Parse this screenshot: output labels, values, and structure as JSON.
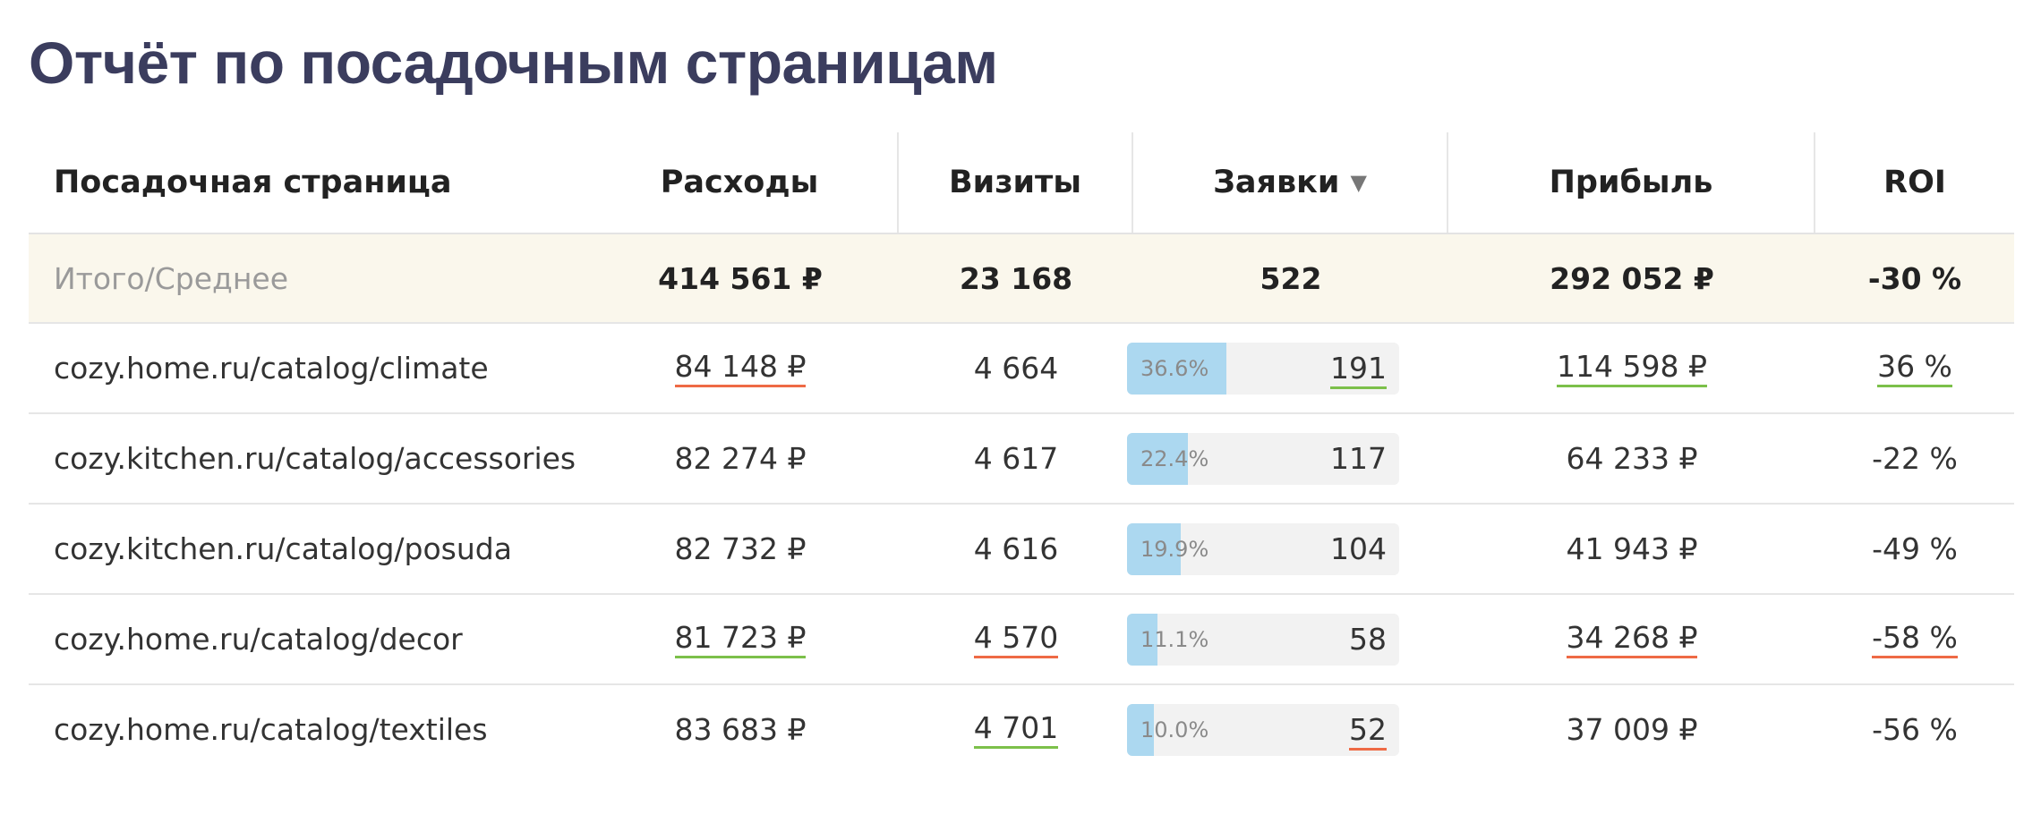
{
  "title": "Отчёт по посадочным страницам",
  "colors": {
    "title": "#3b3d5e",
    "total_row_bg": "#faf7ec",
    "bar_fill": "#acd8f0",
    "bar_track": "#f2f2f2",
    "underline_bad": "#ee6a45",
    "underline_good": "#7cc04a"
  },
  "table": {
    "columns": {
      "page": "Посадочная страница",
      "cost": "Расходы",
      "visits": "Визиты",
      "leads": "Заявки",
      "profit": "Прибыль",
      "roi": "ROI"
    },
    "sort": {
      "column": "leads",
      "direction": "desc",
      "icon": "sort-desc-icon",
      "glyph": "▼"
    },
    "total": {
      "label": "Итого/Среднее",
      "cost": "414 561 ₽",
      "visits": "23 168",
      "leads": "522",
      "profit": "292 052 ₽",
      "roi": "-30 %"
    },
    "rows": [
      {
        "page": "cozy.home.ru/catalog/climate",
        "cost": "84 148 ₽",
        "cost_mark": "red",
        "visits": "4 664",
        "visits_mark": "none",
        "leads": "191",
        "leads_mark": "green",
        "leads_share": 36.6,
        "leads_share_label": "36.6%",
        "profit": "114 598 ₽",
        "profit_mark": "green",
        "roi": "36 %",
        "roi_mark": "green"
      },
      {
        "page": "cozy.kitchen.ru/catalog/accessories",
        "cost": "82 274 ₽",
        "cost_mark": "none",
        "visits": "4 617",
        "visits_mark": "none",
        "leads": "117",
        "leads_mark": "none",
        "leads_share": 22.4,
        "leads_share_label": "22.4%",
        "profit": "64 233 ₽",
        "profit_mark": "none",
        "roi": "-22 %",
        "roi_mark": "none"
      },
      {
        "page": "cozy.kitchen.ru/catalog/posuda",
        "cost": "82 732 ₽",
        "cost_mark": "none",
        "visits": "4 616",
        "visits_mark": "none",
        "leads": "104",
        "leads_mark": "none",
        "leads_share": 19.9,
        "leads_share_label": "19.9%",
        "profit": "41 943 ₽",
        "profit_mark": "none",
        "roi": "-49 %",
        "roi_mark": "none"
      },
      {
        "page": "cozy.home.ru/catalog/decor",
        "cost": "81 723 ₽",
        "cost_mark": "green",
        "visits": "4 570",
        "visits_mark": "red",
        "leads": "58",
        "leads_mark": "none",
        "leads_share": 11.1,
        "leads_share_label": "11.1%",
        "profit": "34 268 ₽",
        "profit_mark": "red",
        "roi": "-58 %",
        "roi_mark": "red"
      },
      {
        "page": "cozy.home.ru/catalog/textiles",
        "cost": "83 683 ₽",
        "cost_mark": "none",
        "visits": "4 701",
        "visits_mark": "green",
        "leads": "52",
        "leads_mark": "red",
        "leads_share": 10.0,
        "leads_share_label": "10.0%",
        "profit": "37 009 ₽",
        "profit_mark": "none",
        "roi": "-56 %",
        "roi_mark": "none"
      }
    ]
  }
}
